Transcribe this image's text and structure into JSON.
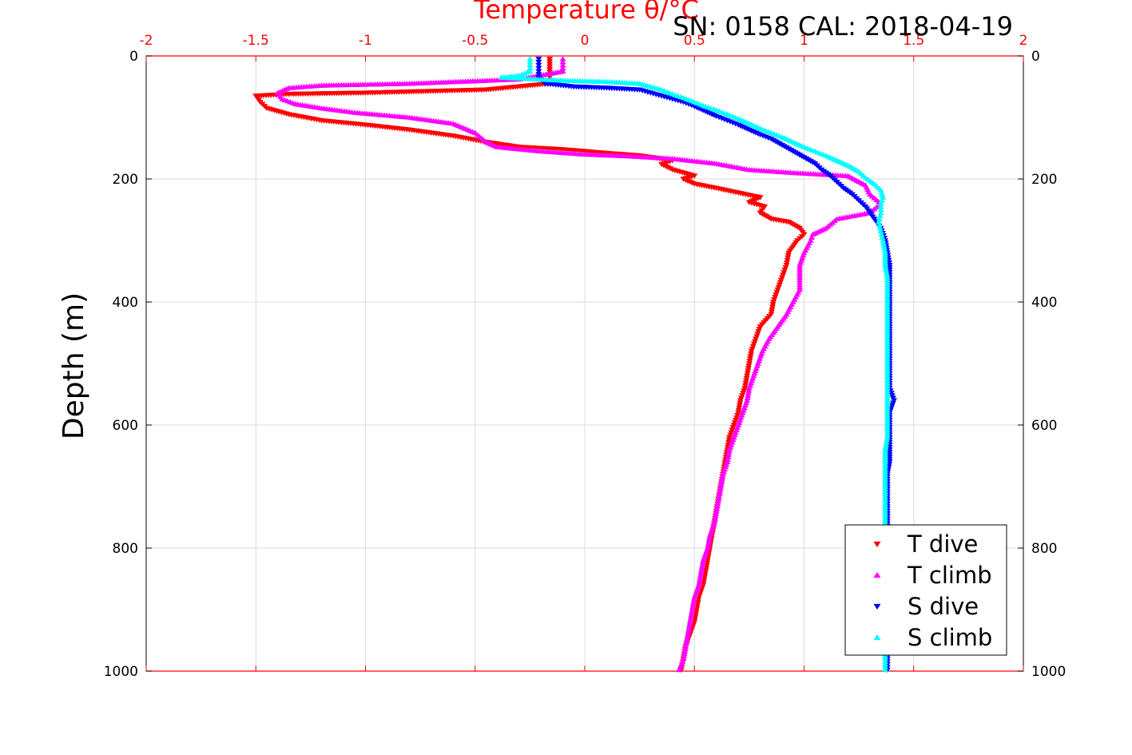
{
  "chart_data": {
    "type": "scatter",
    "title": "Temperature θ/°C",
    "header_note": "SN: 0158  CAL: 2018-04-19",
    "ylabel": "Depth (m)",
    "xlim": [
      -2,
      2
    ],
    "ylim": [
      0,
      1000
    ],
    "y_reversed": true,
    "grid": true,
    "x_ticks": [
      "-2",
      "-1.5",
      "-1",
      "-0.5",
      "0",
      "0.5",
      "1",
      "1.5",
      "2"
    ],
    "y_ticks": [
      "0",
      "200",
      "400",
      "600",
      "800",
      "1000"
    ],
    "legend_position": "bottom-right",
    "series": [
      {
        "name": "T dive",
        "marker": "triangle-down",
        "color": "#ff0000",
        "points": [
          [
            -0.16,
            5
          ],
          [
            -0.16,
            30
          ],
          [
            -0.16,
            45
          ],
          [
            -0.45,
            55
          ],
          [
            -1.0,
            60
          ],
          [
            -1.35,
            62
          ],
          [
            -1.5,
            65
          ],
          [
            -1.48,
            75
          ],
          [
            -1.45,
            85
          ],
          [
            -1.35,
            95
          ],
          [
            -1.2,
            105
          ],
          [
            -1.0,
            112
          ],
          [
            -0.8,
            120
          ],
          [
            -0.6,
            130
          ],
          [
            -0.45,
            140
          ],
          [
            -0.3,
            148
          ],
          [
            -0.1,
            152
          ],
          [
            0.1,
            158
          ],
          [
            0.25,
            162
          ],
          [
            0.4,
            170
          ],
          [
            0.35,
            176
          ],
          [
            0.4,
            185
          ],
          [
            0.5,
            195
          ],
          [
            0.45,
            200
          ],
          [
            0.5,
            208
          ],
          [
            0.6,
            215
          ],
          [
            0.8,
            230
          ],
          [
            0.75,
            238
          ],
          [
            0.82,
            245
          ],
          [
            0.8,
            255
          ],
          [
            0.85,
            265
          ],
          [
            0.93,
            270
          ],
          [
            0.98,
            280
          ],
          [
            1.0,
            290
          ],
          [
            0.97,
            300
          ],
          [
            0.93,
            320
          ],
          [
            0.92,
            340
          ],
          [
            0.9,
            360
          ],
          [
            0.88,
            380
          ],
          [
            0.86,
            400
          ],
          [
            0.85,
            420
          ],
          [
            0.8,
            440
          ],
          [
            0.78,
            460
          ],
          [
            0.76,
            480
          ],
          [
            0.75,
            500
          ],
          [
            0.74,
            520
          ],
          [
            0.73,
            540
          ],
          [
            0.71,
            560
          ],
          [
            0.7,
            580
          ],
          [
            0.68,
            600
          ],
          [
            0.66,
            620
          ],
          [
            0.65,
            640
          ],
          [
            0.64,
            660
          ],
          [
            0.63,
            680
          ],
          [
            0.62,
            700
          ],
          [
            0.61,
            720
          ],
          [
            0.6,
            740
          ],
          [
            0.59,
            760
          ],
          [
            0.58,
            780
          ],
          [
            0.57,
            800
          ],
          [
            0.56,
            820
          ],
          [
            0.55,
            840
          ],
          [
            0.54,
            860
          ],
          [
            0.52,
            880
          ],
          [
            0.51,
            900
          ],
          [
            0.5,
            920
          ],
          [
            0.48,
            940
          ],
          [
            0.46,
            960
          ],
          [
            0.45,
            980
          ],
          [
            0.44,
            998
          ]
        ]
      },
      {
        "name": "T climb",
        "marker": "triangle-up",
        "color": "#ff00ff",
        "points": [
          [
            -0.1,
            5
          ],
          [
            -0.1,
            15
          ],
          [
            -0.1,
            25
          ],
          [
            -0.3,
            38
          ],
          [
            -0.8,
            45
          ],
          [
            -1.2,
            48
          ],
          [
            -1.35,
            52
          ],
          [
            -1.4,
            60
          ],
          [
            -1.38,
            70
          ],
          [
            -1.32,
            78
          ],
          [
            -1.2,
            85
          ],
          [
            -1.05,
            92
          ],
          [
            -0.8,
            100
          ],
          [
            -0.6,
            110
          ],
          [
            -0.5,
            125
          ],
          [
            -0.45,
            140
          ],
          [
            -0.4,
            148
          ],
          [
            -0.2,
            155
          ],
          [
            0.0,
            160
          ],
          [
            0.2,
            163
          ],
          [
            0.4,
            167
          ],
          [
            0.6,
            175
          ],
          [
            0.75,
            185
          ],
          [
            0.95,
            190
          ],
          [
            1.2,
            195
          ],
          [
            1.28,
            210
          ],
          [
            1.3,
            225
          ],
          [
            1.35,
            240
          ],
          [
            1.3,
            255
          ],
          [
            1.15,
            265
          ],
          [
            1.1,
            280
          ],
          [
            1.04,
            290
          ],
          [
            1.03,
            300
          ],
          [
            1.0,
            320
          ],
          [
            0.98,
            340
          ],
          [
            0.98,
            360
          ],
          [
            0.98,
            380
          ],
          [
            0.95,
            400
          ],
          [
            0.92,
            420
          ],
          [
            0.88,
            440
          ],
          [
            0.84,
            460
          ],
          [
            0.81,
            480
          ],
          [
            0.79,
            500
          ],
          [
            0.77,
            520
          ],
          [
            0.75,
            540
          ],
          [
            0.74,
            560
          ],
          [
            0.72,
            580
          ],
          [
            0.7,
            600
          ],
          [
            0.68,
            620
          ],
          [
            0.66,
            640
          ],
          [
            0.65,
            660
          ],
          [
            0.63,
            680
          ],
          [
            0.62,
            700
          ],
          [
            0.61,
            720
          ],
          [
            0.6,
            740
          ],
          [
            0.59,
            760
          ],
          [
            0.57,
            780
          ],
          [
            0.56,
            800
          ],
          [
            0.54,
            820
          ],
          [
            0.53,
            840
          ],
          [
            0.52,
            860
          ],
          [
            0.5,
            880
          ],
          [
            0.49,
            900
          ],
          [
            0.48,
            920
          ],
          [
            0.47,
            940
          ],
          [
            0.46,
            960
          ],
          [
            0.45,
            980
          ],
          [
            0.43,
            998
          ]
        ]
      },
      {
        "name": "S dive",
        "marker": "triangle-down",
        "color": "#0000ff",
        "points": [
          [
            -0.21,
            5
          ],
          [
            -0.21,
            15
          ],
          [
            -0.21,
            25
          ],
          [
            -0.21,
            35
          ],
          [
            -0.18,
            45
          ],
          [
            -0.05,
            50
          ],
          [
            0.1,
            52
          ],
          [
            0.25,
            55
          ],
          [
            0.3,
            60
          ],
          [
            0.35,
            65
          ],
          [
            0.4,
            70
          ],
          [
            0.45,
            75
          ],
          [
            0.5,
            82
          ],
          [
            0.55,
            90
          ],
          [
            0.6,
            98
          ],
          [
            0.65,
            105
          ],
          [
            0.7,
            112
          ],
          [
            0.75,
            120
          ],
          [
            0.8,
            128
          ],
          [
            0.85,
            135
          ],
          [
            0.9,
            145
          ],
          [
            0.95,
            155
          ],
          [
            1.0,
            165
          ],
          [
            1.05,
            175
          ],
          [
            1.08,
            185
          ],
          [
            1.12,
            195
          ],
          [
            1.15,
            205
          ],
          [
            1.18,
            215
          ],
          [
            1.22,
            225
          ],
          [
            1.25,
            235
          ],
          [
            1.28,
            245
          ],
          [
            1.3,
            255
          ],
          [
            1.32,
            265
          ],
          [
            1.35,
            280
          ],
          [
            1.37,
            300
          ],
          [
            1.38,
            320
          ],
          [
            1.39,
            340
          ],
          [
            1.39,
            360
          ],
          [
            1.39,
            380
          ],
          [
            1.39,
            400
          ],
          [
            1.39,
            420
          ],
          [
            1.39,
            440
          ],
          [
            1.39,
            460
          ],
          [
            1.39,
            480
          ],
          [
            1.39,
            500
          ],
          [
            1.39,
            520
          ],
          [
            1.39,
            540
          ],
          [
            1.41,
            560
          ],
          [
            1.39,
            580
          ],
          [
            1.39,
            600
          ],
          [
            1.39,
            620
          ],
          [
            1.39,
            640
          ],
          [
            1.39,
            660
          ],
          [
            1.38,
            680
          ],
          [
            1.38,
            700
          ],
          [
            1.38,
            720
          ],
          [
            1.38,
            740
          ],
          [
            1.38,
            760
          ],
          [
            1.38,
            780
          ],
          [
            1.38,
            800
          ],
          [
            1.38,
            820
          ],
          [
            1.38,
            840
          ],
          [
            1.38,
            860
          ],
          [
            1.38,
            880
          ],
          [
            1.38,
            900
          ],
          [
            1.38,
            920
          ],
          [
            1.38,
            940
          ],
          [
            1.38,
            960
          ],
          [
            1.38,
            980
          ],
          [
            1.38,
            998
          ]
        ]
      },
      {
        "name": "S climb",
        "marker": "triangle-up",
        "color": "#00ffff",
        "points": [
          [
            -0.25,
            5
          ],
          [
            -0.25,
            15
          ],
          [
            -0.25,
            25
          ],
          [
            -0.3,
            32
          ],
          [
            -0.38,
            35
          ],
          [
            -0.1,
            40
          ],
          [
            0.1,
            42
          ],
          [
            0.25,
            45
          ],
          [
            0.35,
            55
          ],
          [
            0.4,
            62
          ],
          [
            0.45,
            68
          ],
          [
            0.5,
            75
          ],
          [
            0.55,
            82
          ],
          [
            0.6,
            88
          ],
          [
            0.65,
            95
          ],
          [
            0.7,
            102
          ],
          [
            0.75,
            110
          ],
          [
            0.8,
            118
          ],
          [
            0.85,
            125
          ],
          [
            0.9,
            132
          ],
          [
            0.95,
            140
          ],
          [
            1.0,
            148
          ],
          [
            1.05,
            155
          ],
          [
            1.1,
            162
          ],
          [
            1.15,
            170
          ],
          [
            1.2,
            178
          ],
          [
            1.25,
            188
          ],
          [
            1.28,
            198
          ],
          [
            1.32,
            208
          ],
          [
            1.35,
            218
          ],
          [
            1.36,
            230
          ],
          [
            1.35,
            240
          ],
          [
            1.35,
            255
          ],
          [
            1.34,
            270
          ],
          [
            1.35,
            285
          ],
          [
            1.36,
            300
          ],
          [
            1.37,
            320
          ],
          [
            1.37,
            340
          ],
          [
            1.38,
            360
          ],
          [
            1.38,
            380
          ],
          [
            1.38,
            400
          ],
          [
            1.38,
            420
          ],
          [
            1.38,
            440
          ],
          [
            1.38,
            460
          ],
          [
            1.38,
            480
          ],
          [
            1.38,
            500
          ],
          [
            1.38,
            520
          ],
          [
            1.38,
            540
          ],
          [
            1.38,
            560
          ],
          [
            1.38,
            580
          ],
          [
            1.38,
            600
          ],
          [
            1.38,
            620
          ],
          [
            1.37,
            640
          ],
          [
            1.37,
            660
          ],
          [
            1.37,
            680
          ],
          [
            1.37,
            700
          ],
          [
            1.37,
            720
          ],
          [
            1.37,
            740
          ],
          [
            1.37,
            760
          ],
          [
            1.37,
            780
          ],
          [
            1.37,
            800
          ],
          [
            1.37,
            820
          ],
          [
            1.37,
            840
          ],
          [
            1.37,
            860
          ],
          [
            1.37,
            880
          ],
          [
            1.37,
            900
          ],
          [
            1.37,
            920
          ],
          [
            1.37,
            940
          ],
          [
            1.37,
            960
          ],
          [
            1.37,
            980
          ],
          [
            1.37,
            998
          ]
        ]
      }
    ]
  }
}
